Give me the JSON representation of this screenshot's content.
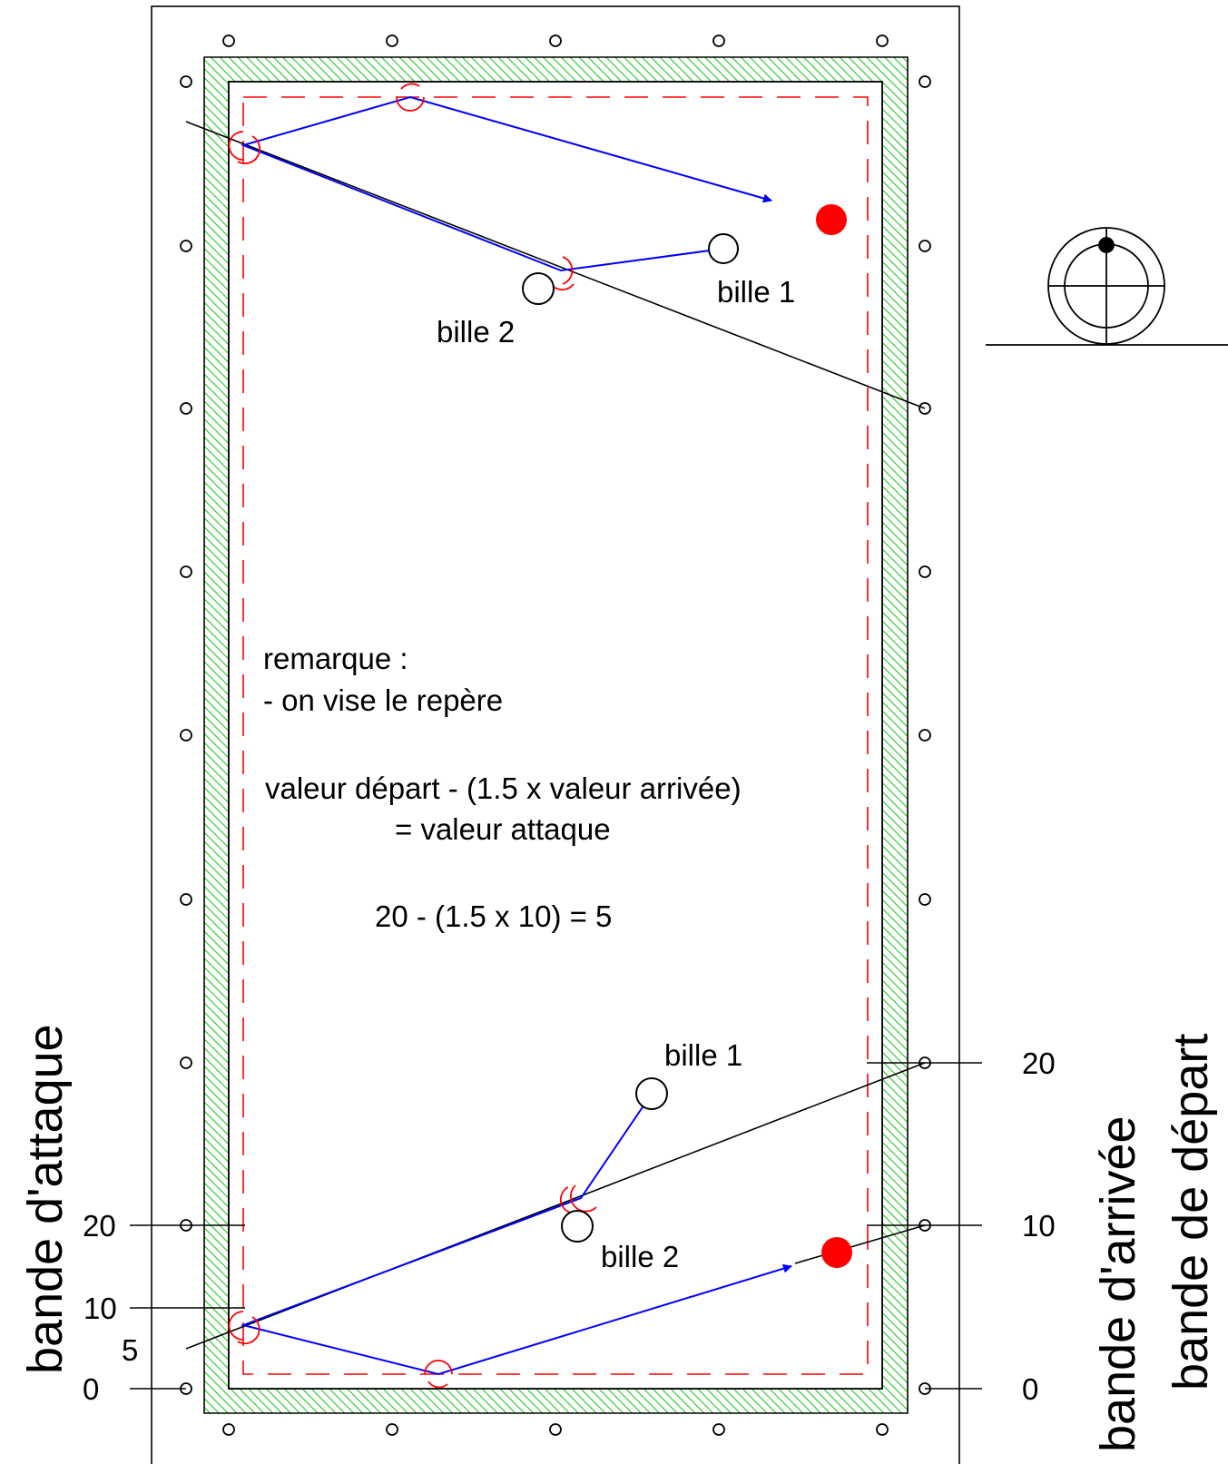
{
  "colors": {
    "cushion": "#33cc33",
    "red_line": "#ff0000",
    "blue_path": "#0000ff",
    "red_ball": "#ff0000",
    "black": "#000000"
  },
  "top_diagram": {
    "ball1_label": "bille 1",
    "ball2_label": "bille 2"
  },
  "bottom_diagram": {
    "ball1_label": "bille 1",
    "ball2_label": "bille 2"
  },
  "remark": {
    "heading": "remarque :",
    "line1": "- on vise le repère",
    "formula_line1": "valeur départ - (1.5 x valeur arrivée)",
    "formula_line2": "= valeur attaque",
    "example": "20 - (1.5 x 10) = 5"
  },
  "left_scale": {
    "v20": "20",
    "v10": "10",
    "v5": "5",
    "v0": "0"
  },
  "right_scale": {
    "v20": "20",
    "v10": "10",
    "v0": "0"
  },
  "side_labels": {
    "left": "bande d'attaque",
    "right_inner": "bande d'arrivée",
    "right_outer": "bande de départ"
  },
  "cue_ball_icon": "cue-ball-hit-point-icon"
}
